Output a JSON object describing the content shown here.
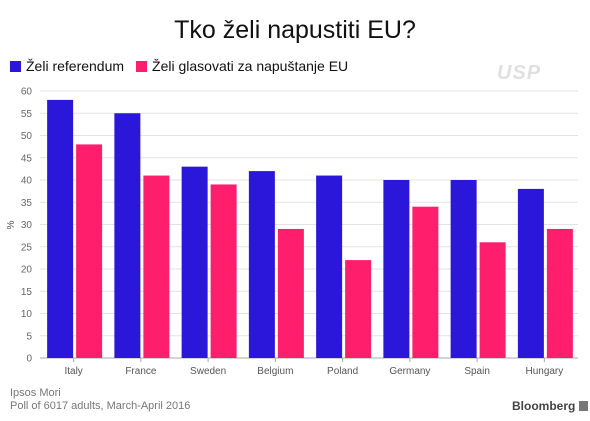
{
  "title": "Tko želi napustiti EU?",
  "legend": [
    {
      "label": "Želi referendum",
      "color": "#2a17d9"
    },
    {
      "label": "Želi glasovati za napuštanje EU",
      "color": "#ff1e6b"
    }
  ],
  "watermark": "USP",
  "source": {
    "line1": "Ipsos Mori",
    "line2": "Poll of 6017 adults, March-April 2016"
  },
  "brand": "Bloomberg",
  "chart_data": {
    "type": "bar",
    "categories": [
      "Italy",
      "France",
      "Sweden",
      "Belgium",
      "Poland",
      "Germany",
      "Spain",
      "Hungary"
    ],
    "series": [
      {
        "name": "Želi referendum",
        "color": "#2a17d9",
        "values": [
          58,
          55,
          43,
          42,
          41,
          40,
          40,
          38
        ]
      },
      {
        "name": "Želi glasovati za napuštanje EU",
        "color": "#ff1e6b",
        "values": [
          48,
          41,
          39,
          29,
          22,
          34,
          26,
          29
        ]
      }
    ],
    "ylabel": "%",
    "ylim": [
      0,
      60
    ],
    "yticks": [
      0,
      5,
      10,
      15,
      20,
      25,
      30,
      35,
      40,
      45,
      50,
      55,
      60
    ],
    "grid": true,
    "legend_position": "top-left"
  }
}
